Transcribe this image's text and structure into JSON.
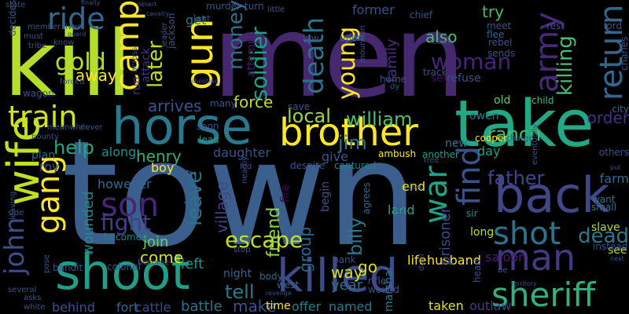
{
  "words": [
    {
      "text": "town",
      "color": "#3b5f8c"
    },
    {
      "text": "men",
      "color": "#46286e"
    },
    {
      "text": "kill",
      "color": "#b5de2b"
    },
    {
      "text": "take",
      "color": "#22a884"
    },
    {
      "text": "horse",
      "color": "#2a788e"
    },
    {
      "text": "shoot",
      "color": "#1f9e89"
    },
    {
      "text": "killed",
      "color": "#3e4a89"
    },
    {
      "text": "back",
      "color": "#3f4788"
    },
    {
      "text": "brother",
      "color": "#fde725"
    },
    {
      "text": "man",
      "color": "#443983"
    },
    {
      "text": "john",
      "color": "#3e4c8a"
    },
    {
      "text": "wife",
      "color": "#c2df23"
    },
    {
      "text": "gun",
      "color": "#fde725"
    },
    {
      "text": "ride",
      "color": "#31688e"
    },
    {
      "text": "camp",
      "color": "#fde725"
    },
    {
      "text": "train",
      "color": "#d2e21b"
    },
    {
      "text": "sheriff",
      "color": "#2eb37c"
    },
    {
      "text": "shot",
      "color": "#2c738e"
    },
    {
      "text": "son",
      "color": "#482475"
    },
    {
      "text": "gang",
      "color": "#fde725"
    },
    {
      "text": "army",
      "color": "#482878"
    },
    {
      "text": "return",
      "color": "#31678e"
    },
    {
      "text": "find",
      "color": "#3b528b"
    },
    {
      "text": "war",
      "color": "#20a386"
    },
    {
      "text": "woman",
      "color": "#482475"
    },
    {
      "text": "dead",
      "color": "#2a788e"
    },
    {
      "text": "death",
      "color": "#2c738e"
    },
    {
      "text": "young",
      "color": "#fde725"
    },
    {
      "text": "gold",
      "color": "#b5de2b"
    },
    {
      "text": "later",
      "color": "#bddf26"
    },
    {
      "text": "money",
      "color": "#2d708e"
    },
    {
      "text": "soldier",
      "color": "#1fa088"
    },
    {
      "text": "killing",
      "color": "#44bf70"
    },
    {
      "text": "fight",
      "color": "#433e85"
    },
    {
      "text": "help",
      "color": "#22a884"
    },
    {
      "text": "escape",
      "color": "#c2df23"
    },
    {
      "text": "local",
      "color": "#9bd93c"
    },
    {
      "text": "william",
      "color": "#4ac16d"
    },
    {
      "text": "jim",
      "color": "#2a788e"
    },
    {
      "text": "father",
      "color": "#3f4788"
    },
    {
      "text": "ranch",
      "color": "#44bf70"
    },
    {
      "text": "also",
      "color": "#4ac16d"
    },
    {
      "text": "order",
      "color": "#46307e"
    },
    {
      "text": "tell",
      "color": "#2a788e"
    },
    {
      "text": "force",
      "color": "#b8de29"
    },
    {
      "text": "arrives",
      "color": "#3b528b"
    },
    {
      "text": "away",
      "color": "#fde725"
    },
    {
      "text": "henry",
      "color": "#2db27d"
    },
    {
      "text": "leave",
      "color": "#2c728e"
    },
    {
      "text": "friend",
      "color": "#8bd646"
    },
    {
      "text": "come",
      "color": "#d8e219"
    },
    {
      "text": "go",
      "color": "#d8e219"
    },
    {
      "text": "way",
      "color": "#d5e21a"
    },
    {
      "text": "try",
      "color": "#3dbc74"
    },
    {
      "text": "new",
      "color": "#2a788e"
    },
    {
      "text": "group",
      "color": "#31688e"
    },
    {
      "text": "billy",
      "color": "#2a788e"
    },
    {
      "text": "village",
      "color": "#414487"
    },
    {
      "text": "wounded",
      "color": "#23888e"
    },
    {
      "text": "join",
      "color": "#6ece58"
    },
    {
      "text": "left",
      "color": "#21918c"
    },
    {
      "text": "make",
      "color": "#3b528b"
    },
    {
      "text": "battle",
      "color": "#2c728e"
    },
    {
      "text": "life",
      "color": "#fde725"
    },
    {
      "text": "husband",
      "color": "#fde725"
    },
    {
      "text": "prisoner",
      "color": "#3e4989"
    },
    {
      "text": "saloon",
      "color": "#481f70"
    },
    {
      "text": "outlaw",
      "color": "#433d84"
    },
    {
      "text": "taken",
      "color": "#dfe318"
    },
    {
      "text": "named",
      "color": "#2a788e"
    },
    {
      "text": "offer",
      "color": "#287d8e"
    },
    {
      "text": "time",
      "color": "#fde725"
    },
    {
      "text": "cattle",
      "color": "#3f4788"
    },
    {
      "text": "fort",
      "color": "#31688e"
    },
    {
      "text": "behind",
      "color": "#3b528b"
    },
    {
      "text": "year",
      "color": "#2d708e"
    },
    {
      "text": "land",
      "color": "#22a884"
    },
    {
      "text": "end",
      "color": "#e5e419"
    },
    {
      "text": "family",
      "color": "#4d2d7d"
    },
    {
      "text": "daughter",
      "color": "#3b528b"
    },
    {
      "text": "along",
      "color": "#21918c"
    },
    {
      "text": "however",
      "color": "#31688e"
    },
    {
      "text": "boy",
      "color": "#fde725"
    },
    {
      "text": "roy",
      "color": "#3b528b"
    },
    {
      "text": "give",
      "color": "#3b528b"
    },
    {
      "text": "farm",
      "color": "#31688e"
    },
    {
      "text": "day",
      "color": "#1f9e89"
    },
    {
      "text": "run",
      "color": "#46337e"
    },
    {
      "text": "attack",
      "color": "#46337e"
    },
    {
      "text": "get",
      "color": "#2a788e"
    },
    {
      "text": "attempt",
      "color": "#481a6c"
    },
    {
      "text": "owen",
      "color": "#2a788e"
    },
    {
      "text": "old",
      "color": "#5ec962"
    },
    {
      "text": "refuse",
      "color": "#3b528b"
    },
    {
      "text": "set",
      "color": "#46085c"
    },
    {
      "text": "long",
      "color": "#b5de2b"
    },
    {
      "text": "see",
      "color": "#b5de2b"
    },
    {
      "text": "slave",
      "color": "#b5de2b"
    },
    {
      "text": "fire",
      "color": "#440154"
    },
    {
      "text": "lead",
      "color": "#1f9e89"
    },
    {
      "text": "plan",
      "color": "#31688e"
    },
    {
      "text": "deputy",
      "color": "#31688e"
    },
    {
      "text": "becomes",
      "color": "#287d8e"
    },
    {
      "text": "night",
      "color": "#31688e"
    },
    {
      "text": "agrees",
      "color": "#31688e"
    },
    {
      "text": "begin",
      "color": "#3b528b"
    },
    {
      "text": "marshal",
      "color": "#2a788e"
    },
    {
      "text": "wound",
      "color": "#3b528b"
    },
    {
      "text": "rifle",
      "color": "#3b528b"
    },
    {
      "text": "body",
      "color": "#31688e"
    },
    {
      "text": "ambush",
      "color": "#fde725"
    },
    {
      "text": "captured",
      "color": "#2a788e"
    },
    {
      "text": "despite",
      "color": "#3b528b"
    },
    {
      "text": "another",
      "color": "#1f9e89"
    },
    {
      "text": "cooper",
      "color": "#fde725"
    },
    {
      "text": "charge",
      "color": "#3b528b"
    },
    {
      "text": "bandit",
      "color": "#3b528b"
    },
    {
      "text": "colonel",
      "color": "#3b528b"
    },
    {
      "text": "stop",
      "color": "#3b528b"
    },
    {
      "text": "west",
      "color": "#31688e"
    },
    {
      "text": "bank",
      "color": "#3b528b"
    },
    {
      "text": "head",
      "color": "#3b528b"
    },
    {
      "text": "sir",
      "color": "#21918c"
    },
    {
      "text": "capture",
      "color": "#3b528b"
    },
    {
      "text": "others",
      "color": "#3b528b"
    },
    {
      "text": "want",
      "color": "#2a788e"
    },
    {
      "text": "small",
      "color": "#2a788e"
    },
    {
      "text": "instead",
      "color": "#3b528b"
    },
    {
      "text": "nearby",
      "color": "#3b528b"
    },
    {
      "text": "eventually",
      "color": "#3b528b"
    },
    {
      "text": "city",
      "color": "#31688e"
    },
    {
      "text": "child",
      "color": "#3dbc74"
    },
    {
      "text": "rest",
      "color": "#3b528b"
    },
    {
      "text": "meet",
      "color": "#3b528b"
    },
    {
      "text": "flee",
      "color": "#31688e"
    },
    {
      "text": "rebel",
      "color": "#3b528b"
    },
    {
      "text": "sends",
      "color": "#3b528b"
    },
    {
      "text": "lord",
      "color": "#3b528b"
    },
    {
      "text": "charles",
      "color": "#3b528b"
    },
    {
      "text": "former",
      "color": "#3b528b"
    },
    {
      "text": "chief",
      "color": "#3b528b"
    },
    {
      "text": "upon",
      "color": "#2a788e"
    },
    {
      "text": "law",
      "color": "#3b528b"
    },
    {
      "text": "home",
      "color": "#3b528b"
    },
    {
      "text": "mountain",
      "color": "#3b528b"
    },
    {
      "text": "save",
      "color": "#3b528b"
    },
    {
      "text": "many",
      "color": "#3b528b"
    },
    {
      "text": "soon",
      "color": "#3b528b"
    },
    {
      "text": "leader",
      "color": "#3b528b"
    },
    {
      "text": "jackson",
      "color": "#3b528b"
    },
    {
      "text": "last",
      "color": "#3b528b"
    },
    {
      "text": "murder",
      "color": "#3b528b"
    },
    {
      "text": "turn",
      "color": "#3b528b"
    },
    {
      "text": "little",
      "color": "#3b528b"
    },
    {
      "text": "state",
      "color": "#3b528b"
    },
    {
      "text": "finally",
      "color": "#3b528b"
    },
    {
      "text": "decides",
      "color": "#3b528b"
    },
    {
      "text": "must",
      "color": "#3b528b"
    },
    {
      "text": "member",
      "color": "#3b528b"
    },
    {
      "text": "river",
      "color": "#3b528b"
    },
    {
      "text": "tribe",
      "color": "#3b528b"
    },
    {
      "text": "know",
      "color": "#3b528b"
    },
    {
      "text": "guard",
      "color": "#3b528b"
    },
    {
      "text": "wagon",
      "color": "#3b528b"
    },
    {
      "text": "shooting",
      "color": "#3b528b"
    },
    {
      "text": "across",
      "color": "#3b528b"
    },
    {
      "text": "forced",
      "color": "#3b528b"
    },
    {
      "text": "desert",
      "color": "#3b528b"
    },
    {
      "text": "cavalry",
      "color": "#3b528b"
    },
    {
      "text": "track",
      "color": "#3b528b"
    },
    {
      "text": "robert",
      "color": "#3b528b"
    },
    {
      "text": "side",
      "color": "#3b528b"
    },
    {
      "text": "leaving",
      "color": "#3b528b"
    },
    {
      "text": "several",
      "color": "#3b528b"
    },
    {
      "text": "asks",
      "color": "#3b528b"
    },
    {
      "text": "white",
      "color": "#3b528b"
    },
    {
      "text": "pose",
      "color": "#3b528b"
    },
    {
      "text": "duel",
      "color": "#3b528b"
    },
    {
      "text": "territory",
      "color": "#3b528b"
    },
    {
      "text": "put",
      "color": "#3b528b"
    },
    {
      "text": "next",
      "color": "#3b528b"
    },
    {
      "text": "meanwhile",
      "color": "#3b528b"
    },
    {
      "text": "never",
      "color": "#3b528b"
    },
    {
      "text": "bounty",
      "color": "#3b528b"
    },
    {
      "text": "keep",
      "color": "#3b528b"
    },
    {
      "text": "free",
      "color": "#3b528b"
    },
    {
      "text": "revenge",
      "color": "#3b528b"
    },
    {
      "text": "led",
      "color": "#3b528b"
    },
    {
      "text": "dy",
      "color": "#3b528b"
    },
    {
      "text": "de",
      "color": "#3b528b"
    },
    {
      "text": "become",
      "color": "#3b528b"
    }
  ]
}
